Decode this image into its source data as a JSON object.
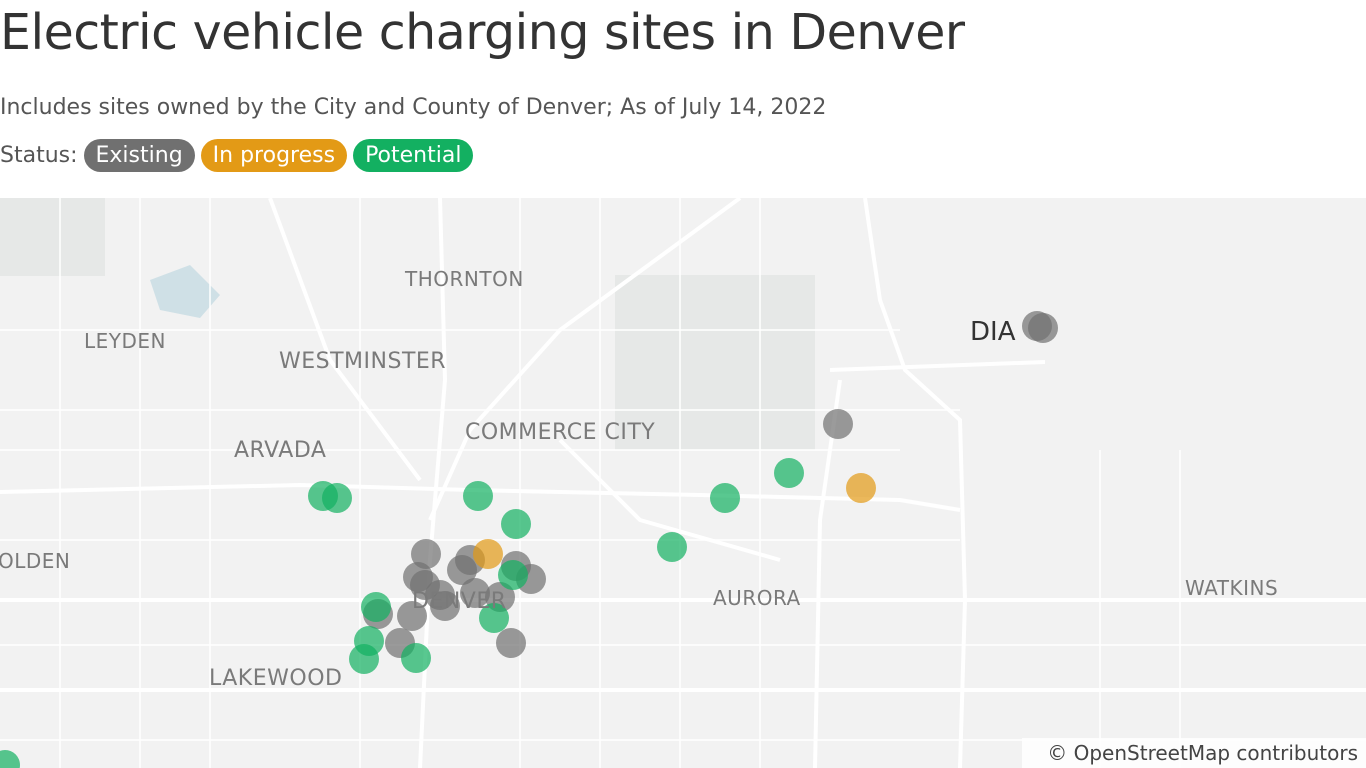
{
  "header": {
    "title": "Electric vehicle charging sites in Denver",
    "subtitle": "Includes sites owned by the City and County of Denver; As of July 14, 2022"
  },
  "legend": {
    "label": "Status:",
    "items": [
      "Existing",
      "In progress",
      "Potential"
    ]
  },
  "map": {
    "places": [
      "THORNTON",
      "LEYDEN",
      "WESTMINSTER",
      "ARVADA",
      "COMMERCE CITY",
      "DIA",
      "GOLDEN",
      "DENVER",
      "AURORA",
      "WATKINS",
      "LAKEWOOD"
    ],
    "attribution": "© OpenStreetMap contributors"
  }
}
